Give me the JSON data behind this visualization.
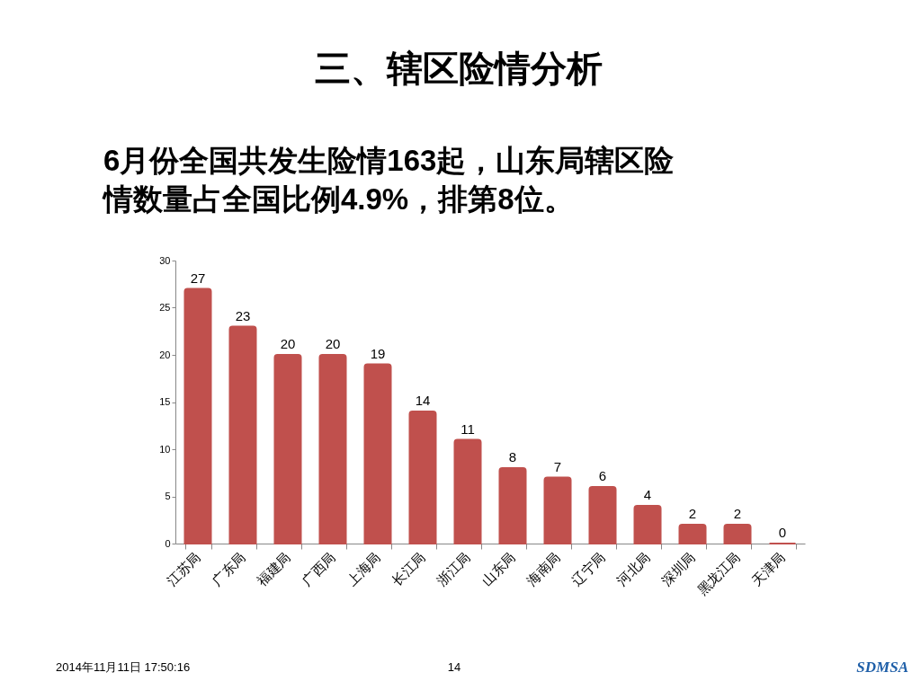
{
  "chart_data": {
    "type": "bar",
    "title": "三、辖区险情分析",
    "subtitle": "6月份全国共发生险情163起，山东局辖区险情数量占全国比例4.9%，排第8位。",
    "categories": [
      "江苏局",
      "广东局",
      "福建局",
      "广西局",
      "上海局",
      "长江局",
      "浙江局",
      "山东局",
      "海南局",
      "辽宁局",
      "河北局",
      "深圳局",
      "黑龙江局",
      "天津局"
    ],
    "values": [
      27,
      23,
      20,
      20,
      19,
      14,
      11,
      8,
      7,
      6,
      4,
      2,
      2,
      0
    ],
    "color": "#c0504d",
    "ylim": [
      0,
      30
    ],
    "yticks": [
      0,
      5,
      10,
      15,
      20,
      25,
      30
    ],
    "data_labels": true,
    "annotations": [
      "2014年11月11日  17:50:16",
      "14",
      "SDMSA"
    ]
  }
}
